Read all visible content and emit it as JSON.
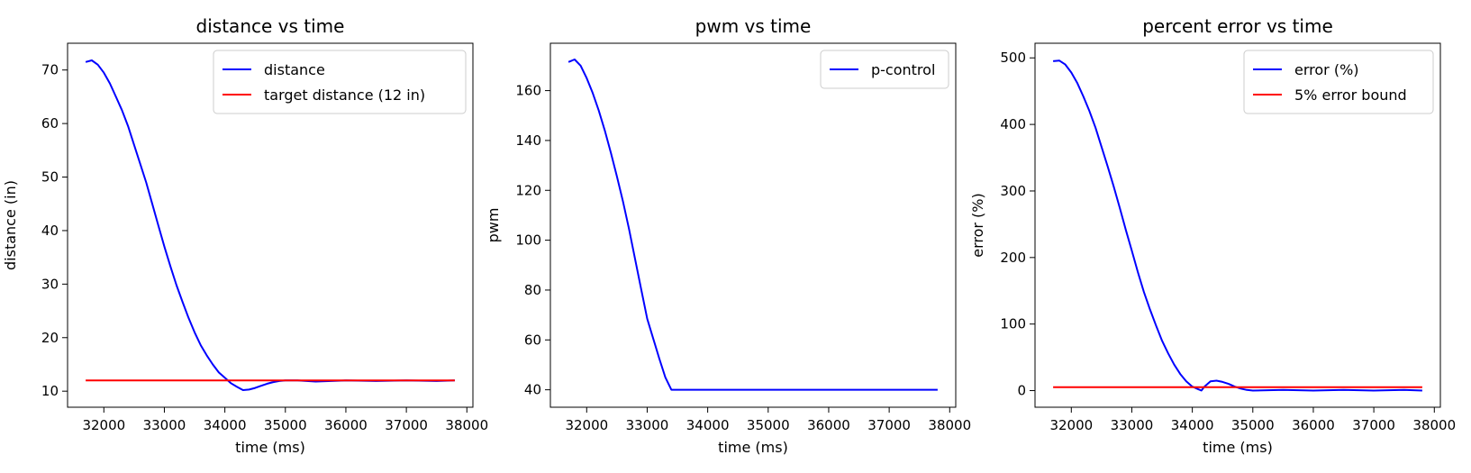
{
  "colors": {
    "blue": "#0000ff",
    "red": "#ff0000"
  },
  "chart_data": [
    {
      "type": "line",
      "title": "distance vs time",
      "xlabel": "time (ms)",
      "ylabel": "distance (in)",
      "xlim": [
        31400,
        38100
      ],
      "ylim": [
        7,
        75
      ],
      "xticks": [
        32000,
        33000,
        34000,
        35000,
        36000,
        37000,
        38000
      ],
      "yticks": [
        10,
        20,
        30,
        40,
        50,
        60,
        70
      ],
      "grid": false,
      "legend": "top-right",
      "series": [
        {
          "name": "distance",
          "color": "#0000ff",
          "x": [
            31700,
            31800,
            31900,
            32000,
            32100,
            32200,
            32300,
            32400,
            32500,
            32600,
            32700,
            32800,
            32900,
            33000,
            33100,
            33200,
            33300,
            33400,
            33500,
            33600,
            33700,
            33800,
            33900,
            34000,
            34100,
            34200,
            34300,
            34400,
            34500,
            34600,
            34700,
            34800,
            34900,
            35000,
            35200,
            35500,
            36000,
            36500,
            37000,
            37500,
            37800
          ],
          "y": [
            71.5,
            71.8,
            71.0,
            69.5,
            67.5,
            65.0,
            62.5,
            59.5,
            56.0,
            52.5,
            49.0,
            45.0,
            41.0,
            37.0,
            33.3,
            29.8,
            26.7,
            23.7,
            21.0,
            18.6,
            16.7,
            15.0,
            13.5,
            12.5,
            11.5,
            10.8,
            10.2,
            10.3,
            10.6,
            11.0,
            11.4,
            11.7,
            11.9,
            12.0,
            12.0,
            11.8,
            12.0,
            11.9,
            12.0,
            11.9,
            12.0
          ]
        },
        {
          "name": "target distance (12 in)",
          "color": "#ff0000",
          "x": [
            31700,
            37800
          ],
          "y": [
            12,
            12
          ]
        }
      ]
    },
    {
      "type": "line",
      "title": "pwm vs time",
      "xlabel": "time (ms)",
      "ylabel": "pwm",
      "xlim": [
        31400,
        38100
      ],
      "ylim": [
        33,
        179
      ],
      "xticks": [
        32000,
        33000,
        34000,
        35000,
        36000,
        37000,
        38000
      ],
      "yticks": [
        40,
        60,
        80,
        100,
        120,
        140,
        160
      ],
      "grid": false,
      "legend": "top-right",
      "series": [
        {
          "name": "p-control",
          "color": "#0000ff",
          "x": [
            31700,
            31800,
            31900,
            32000,
            32100,
            32200,
            32300,
            32400,
            32500,
            32600,
            32700,
            32800,
            32900,
            33000,
            33100,
            33200,
            33300,
            33400,
            33500,
            34000,
            35000,
            36000,
            37000,
            37800
          ],
          "y": [
            171.5,
            172.5,
            170.0,
            165.0,
            159.0,
            152.0,
            144.0,
            135.0,
            125.5,
            115.5,
            104.5,
            92.5,
            80.5,
            68.5,
            60.5,
            52.5,
            45.0,
            40.0,
            40.0,
            40.0,
            40.0,
            40.0,
            40.0,
            40.0
          ]
        }
      ]
    },
    {
      "type": "line",
      "title": "percent error vs time",
      "xlabel": "time (ms)",
      "ylabel": "error (%)",
      "xlim": [
        31400,
        38100
      ],
      "ylim": [
        -25,
        522
      ],
      "xticks": [
        32000,
        33000,
        34000,
        35000,
        36000,
        37000,
        38000
      ],
      "yticks": [
        0,
        100,
        200,
        300,
        400,
        500
      ],
      "grid": false,
      "legend": "top-right",
      "series": [
        {
          "name": "error (%)",
          "color": "#0000ff",
          "x": [
            31700,
            31800,
            31900,
            32000,
            32100,
            32200,
            32300,
            32400,
            32500,
            32600,
            32700,
            32800,
            32900,
            33000,
            33100,
            33200,
            33300,
            33400,
            33500,
            33600,
            33700,
            33800,
            33900,
            34000,
            34100,
            34150,
            34200,
            34300,
            34400,
            34500,
            34600,
            34700,
            34800,
            34900,
            35000,
            35500,
            36000,
            36500,
            37000,
            37500,
            37800
          ],
          "y": [
            495,
            496,
            490,
            478,
            462,
            442,
            420,
            395,
            366,
            337,
            307,
            275,
            242,
            210,
            178,
            148,
            122,
            98,
            75,
            56,
            39,
            25,
            14,
            6,
            2,
            0,
            6,
            14,
            15,
            13,
            10,
            6,
            3,
            1,
            0,
            1,
            0,
            1,
            0,
            1,
            0
          ]
        },
        {
          "name": "5% error bound",
          "color": "#ff0000",
          "x": [
            31700,
            37800
          ],
          "y": [
            5,
            5
          ]
        }
      ]
    }
  ]
}
